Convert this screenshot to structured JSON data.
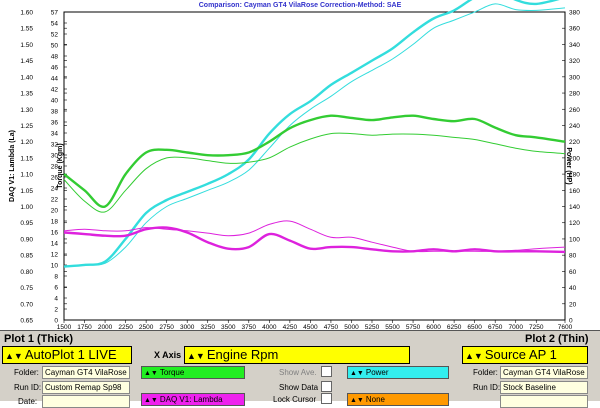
{
  "chart_data": {
    "type": "line",
    "title": "Comparison: Cayman GT4 VilaRose      Correction-Method: SAE",
    "xlabel": "",
    "x_ticks": [
      1500,
      1750,
      2000,
      2250,
      2500,
      2750,
      3000,
      3250,
      3500,
      3750,
      4000,
      4250,
      4500,
      4750,
      5000,
      5250,
      5500,
      5750,
      6000,
      6250,
      6500,
      6750,
      7000,
      7250,
      7600
    ],
    "xlim": [
      1500,
      7600
    ],
    "y_left_outer": {
      "label": "DAQ V1: Lambda (La)",
      "ticks": [
        "1.60",
        "1.55",
        "1.50",
        "1.45",
        "1.40",
        "1.35",
        "1.30",
        "1.25",
        "1.20",
        "1.15",
        "1.10",
        "1.05",
        "1.00",
        "0.95",
        "0.90",
        "0.85",
        "0.80",
        "0.75",
        "0.70",
        "0.65"
      ],
      "range": [
        0.65,
        1.6
      ]
    },
    "y_left_inner": {
      "label": "Torque (Kgm)",
      "ticks": [
        "57",
        "54",
        "52",
        "50",
        "48",
        "46",
        "44",
        "42",
        "40",
        "38",
        "36",
        "34",
        "32",
        "30",
        "28",
        "26",
        "24",
        "22",
        "20",
        "18",
        "16",
        "14",
        "12",
        "10",
        "8",
        "6",
        "4",
        "2",
        "0"
      ],
      "range": [
        0,
        57
      ]
    },
    "y_right": {
      "label": "Power (HP)",
      "ticks": [
        "380",
        "360",
        "340",
        "320",
        "300",
        "280",
        "260",
        "240",
        "220",
        "200",
        "180",
        "160",
        "140",
        "120",
        "100",
        "80",
        "60",
        "40",
        "20",
        "0"
      ],
      "range": [
        0,
        380
      ]
    },
    "grid": false,
    "series": [
      {
        "name": "Power",
        "axis": "power",
        "color": "#33dddd",
        "width": 2.4,
        "x": [
          1500,
          1750,
          2000,
          2250,
          2500,
          2750,
          3000,
          3250,
          3500,
          3750,
          4000,
          4250,
          4500,
          4750,
          5000,
          5250,
          5500,
          5750,
          6000,
          6250,
          6500,
          6750,
          7000,
          7250,
          7600
        ],
        "values": [
          66,
          68,
          72,
          100,
          132,
          148,
          158,
          168,
          180,
          198,
          230,
          254,
          270,
          290,
          305,
          320,
          335,
          355,
          372,
          382,
          398,
          408,
          395,
          390,
          398
        ]
      },
      {
        "name": "Power (Plot 2)",
        "axis": "power",
        "color": "#33dddd",
        "width": 1,
        "x": [
          1500,
          1750,
          2000,
          2250,
          2500,
          2750,
          3000,
          3250,
          3500,
          3750,
          4000,
          4250,
          4500,
          4750,
          5000,
          5250,
          5500,
          5750,
          6000,
          6250,
          6500,
          6750,
          7000,
          7250,
          7600
        ],
        "values": [
          66,
          68,
          70,
          90,
          120,
          140,
          150,
          160,
          170,
          185,
          212,
          240,
          260,
          276,
          294,
          308,
          322,
          340,
          360,
          370,
          380,
          390,
          383,
          382,
          385
        ]
      },
      {
        "name": "Torque",
        "axis": "torque",
        "color": "#33cc33",
        "width": 2.4,
        "x": [
          1500,
          1750,
          2000,
          2250,
          2500,
          2750,
          3000,
          3250,
          3500,
          3750,
          4000,
          4250,
          4500,
          4750,
          5000,
          5250,
          5500,
          5750,
          6000,
          6250,
          6500,
          6750,
          7000,
          7250,
          7600
        ],
        "values": [
          27,
          24,
          21,
          27,
          31,
          31.5,
          31,
          30.5,
          30.5,
          31,
          33,
          35.5,
          37,
          37.8,
          37.4,
          37.0,
          37.5,
          37.8,
          37.2,
          36.8,
          37.2,
          35.6,
          34.2,
          33.8,
          33.0
        ]
      },
      {
        "name": "Torque (Plot 2)",
        "axis": "torque",
        "color": "#33cc33",
        "width": 1,
        "x": [
          1500,
          1750,
          2000,
          2250,
          2500,
          2750,
          3000,
          3250,
          3500,
          3750,
          4000,
          4250,
          4500,
          4750,
          5000,
          5250,
          5500,
          5750,
          6000,
          6250,
          6500,
          6750,
          7000,
          7250,
          7600
        ],
        "values": [
          26,
          22,
          20,
          24,
          28,
          30,
          30,
          29.5,
          29,
          29.2,
          30,
          32,
          33.5,
          34.5,
          34.5,
          34.2,
          34.4,
          34.4,
          34.2,
          33.8,
          33.4,
          32.6,
          31.8,
          31.2,
          30.8
        ]
      },
      {
        "name": "DAQ V1: Lambda",
        "axis": "lambda",
        "color": "#dd22dd",
        "width": 2.4,
        "x": [
          1500,
          1750,
          2000,
          2250,
          2500,
          2750,
          3000,
          3250,
          3500,
          3750,
          4000,
          4250,
          4500,
          4750,
          5000,
          5250,
          5500,
          5750,
          6000,
          6250,
          6500,
          6750,
          7000,
          7250,
          7600
        ],
        "values": [
          0.92,
          0.915,
          0.91,
          0.91,
          0.93,
          0.935,
          0.92,
          0.89,
          0.87,
          0.875,
          0.915,
          0.895,
          0.87,
          0.875,
          0.875,
          0.868,
          0.862,
          0.862,
          0.868,
          0.862,
          0.868,
          0.862,
          0.862,
          0.862,
          0.86
        ]
      },
      {
        "name": "DAQ V1: Lambda (Plot 2)",
        "axis": "lambda",
        "color": "#dd22dd",
        "width": 1,
        "x": [
          1500,
          1750,
          2000,
          2250,
          2500,
          2750,
          3000,
          3250,
          3500,
          3750,
          4000,
          4250,
          4500,
          4750,
          5000,
          5250,
          5500,
          5750,
          6000,
          6250,
          6500,
          6750,
          7000,
          7250,
          7600
        ],
        "values": [
          0.925,
          0.93,
          0.925,
          0.925,
          0.935,
          0.93,
          0.925,
          0.918,
          0.91,
          0.918,
          0.945,
          0.955,
          0.93,
          0.905,
          0.905,
          0.89,
          0.875,
          0.862,
          0.862,
          0.862,
          0.862,
          0.862,
          0.865,
          0.87,
          0.875
        ]
      }
    ]
  },
  "panel": {
    "plot1_header": "Plot 1 (Thick)",
    "plot2_header": "Plot 2 (Thin)",
    "plot1_select": "AutoPlot 1 LIVE",
    "xaxis_label": "X Axis",
    "xaxis_value": "Engine Rpm",
    "plot2_select": "Source AP 1",
    "folder_label": "Folder:",
    "folder1": "Cayman GT4 VilaRose",
    "folder2": "Cayman GT4 VilaRose",
    "runid_label": "Run ID:",
    "runid1": "Custom Remap Sp98",
    "runid2": "Stock Baseline",
    "date_label": "Date:",
    "ch1": "Torque",
    "ch2": "Power",
    "ch3": "DAQ V1: Lambda",
    "ch4": "None",
    "show_ave": "Show Ave.",
    "show_data": "Show Data",
    "lock_cursor": "Lock Cursor",
    "ch1_color": "#22ee22",
    "ch2_color": "#33eeee",
    "ch3_color": "#ee22ee",
    "ch4_color": "#ff9900"
  }
}
